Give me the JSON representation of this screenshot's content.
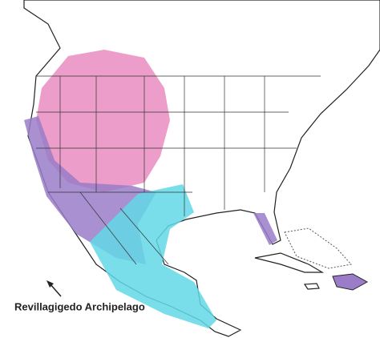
{
  "map": {
    "label": "Revillagigedo Archipelago"
  }
}
